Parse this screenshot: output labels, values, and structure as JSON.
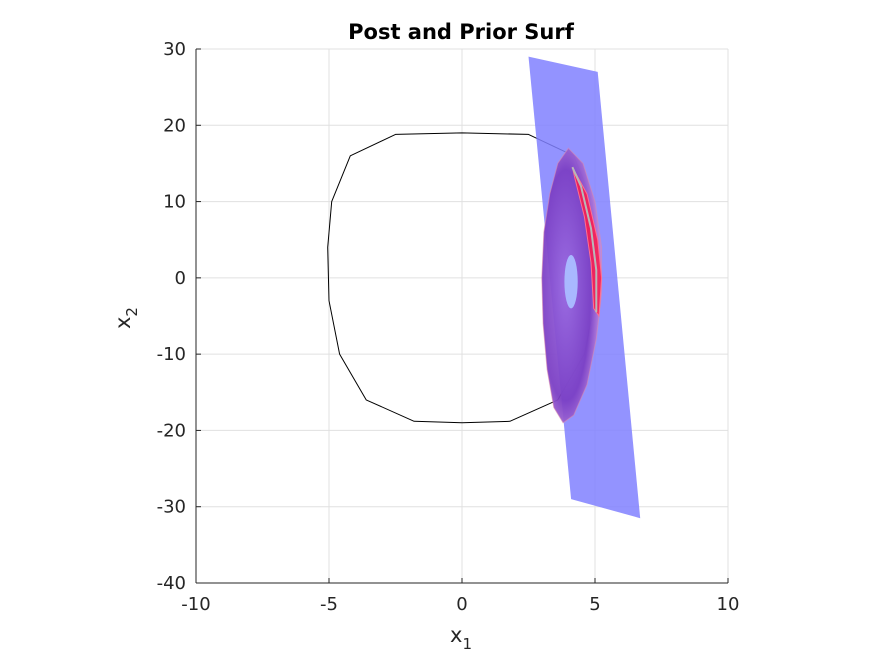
{
  "chart_data": {
    "type": "line",
    "title": "Post and Prior Surf",
    "xlabel": "x",
    "xlabel_sub": "1",
    "ylabel": "x",
    "ylabel_sub": "2",
    "xlim": [
      -10,
      10
    ],
    "ylim": [
      -40,
      30
    ],
    "xticks": [
      -10,
      -5,
      0,
      5,
      10
    ],
    "yticks": [
      -40,
      -30,
      -20,
      -10,
      0,
      10,
      20,
      30
    ],
    "grid": true,
    "colors": {
      "orbit": "#000000",
      "prior_surface": "#8080ff",
      "posterior_inner": "#7b3fc4",
      "posterior_band": "#ff1a4a",
      "hole": "#a9b8ff",
      "grid": "#e0e0e0"
    },
    "orbit": {
      "x": [
        0,
        2.5,
        4.2,
        4.9,
        5.05,
        5.0,
        4.6,
        3.6,
        1.8,
        0,
        -1.8,
        -3.6,
        -4.6,
        -5.0,
        -5.05,
        -4.9,
        -4.2,
        -2.5,
        0
      ],
      "y": [
        19,
        18.8,
        16,
        10,
        4,
        -3,
        -10,
        -16,
        -18.8,
        -19,
        -18.8,
        -16,
        -10,
        -3,
        4,
        10,
        16,
        18.8,
        19
      ]
    },
    "prior_surface": {
      "x": [
        2.5,
        5.1,
        6.7,
        4.1
      ],
      "y": [
        29,
        27,
        -31.5,
        -29
      ]
    },
    "posterior_surface": {
      "outer_x": [
        4.0,
        4.55,
        5.0,
        5.25,
        5.25,
        5.05,
        4.7,
        4.2,
        3.8,
        3.45,
        3.2,
        3.05,
        3.0,
        3.08,
        3.3,
        3.6,
        4.0
      ],
      "outer_y": [
        17.0,
        15.0,
        10.0,
        4.0,
        -2.0,
        -8.0,
        -14.0,
        -18.0,
        -19.0,
        -17.0,
        -12.0,
        -6.0,
        0.0,
        6.0,
        11.0,
        15.0,
        17.0
      ],
      "band_x": [
        4.15,
        4.7,
        5.1,
        5.25,
        5.15,
        4.95,
        4.85,
        4.6,
        4.25,
        4.15
      ],
      "band_y": [
        14.5,
        11.0,
        5.0,
        0.0,
        -5.0,
        -4.0,
        2.0,
        8.0,
        13.0,
        14.5
      ],
      "hole_center": [
        4.1,
        -0.5
      ],
      "hole_radius": [
        0.25,
        3.5
      ]
    }
  }
}
